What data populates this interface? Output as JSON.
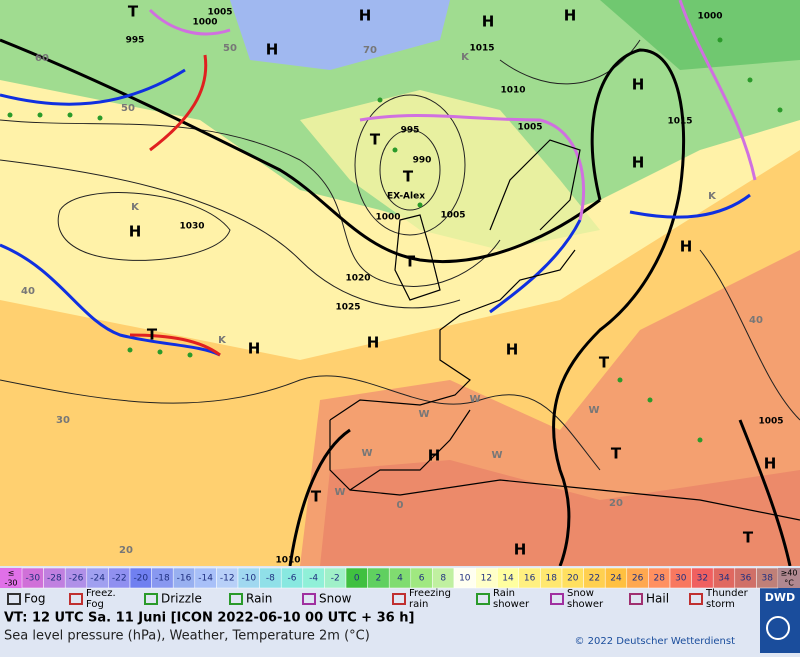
{
  "map": {
    "labels": [
      "T",
      "995",
      "1000",
      "1005",
      "H",
      "H",
      "H",
      "H",
      "1015",
      "1010",
      "995",
      "T",
      "990",
      "T",
      "EX-Alex",
      "1000",
      "1005",
      "1005",
      "H",
      "1015",
      "H",
      "1000",
      "H",
      "1030",
      "K",
      "H",
      "K",
      "T",
      "1020",
      "1025",
      "H",
      "T",
      "K",
      "H",
      "H",
      "T",
      "40",
      "40",
      "30",
      "H",
      "W",
      "W",
      "W",
      "W",
      "T",
      "H",
      "1005",
      "T",
      "W",
      "0",
      "20",
      "H",
      "T",
      "20",
      "1010",
      "60",
      "50",
      "50",
      "70",
      "K",
      "W"
    ]
  },
  "color_scale": {
    "low_symbol": "≤",
    "low_value": "-30",
    "high_value": "≥40",
    "high_unit": "°C",
    "values": [
      -30,
      -28,
      -26,
      -24,
      -22,
      -20,
      -18,
      -16,
      -14,
      -12,
      -10,
      -8,
      -6,
      -4,
      -2,
      0,
      2,
      4,
      6,
      8,
      10,
      12,
      14,
      16,
      18,
      20,
      22,
      24,
      26,
      28,
      30,
      32,
      34,
      36,
      38
    ],
    "colors": [
      "#d070d8",
      "#c080e0",
      "#b090e8",
      "#a0a0f0",
      "#9090f0",
      "#7080f0",
      "#8898f0",
      "#98b0f0",
      "#a8c0f8",
      "#b8d0f8",
      "#a0d8f0",
      "#90e0e8",
      "#88e8e0",
      "#90f0d8",
      "#a0f0c8",
      "#40c040",
      "#60d060",
      "#80dc70",
      "#a0e880",
      "#c0f0a0",
      "#fffff0",
      "#ffffc8",
      "#ffffa0",
      "#fff080",
      "#ffe870",
      "#ffe060",
      "#ffd050",
      "#ffc040",
      "#ffa850",
      "#ff9060",
      "#f87860",
      "#f06060",
      "#e06860",
      "#d07068",
      "#c08078"
    ]
  },
  "legend": [
    {
      "label": [
        "Fog"
      ]
    },
    {
      "label": [
        "Freez.",
        "Fog"
      ]
    },
    {
      "label": [
        "Drizzle"
      ]
    },
    {
      "label": [
        "Rain"
      ]
    },
    {
      "label": [
        "Snow"
      ]
    },
    {
      "label": [
        "Freezing",
        "rain"
      ]
    },
    {
      "label": [
        "Rain",
        "shower"
      ]
    },
    {
      "label": [
        "Snow",
        "shower"
      ]
    },
    {
      "label": [
        "Hail"
      ]
    },
    {
      "label": [
        "Thunder",
        "storm"
      ]
    }
  ],
  "footer": {
    "valid_time": "VT: 12 UTC Sa.  11 Juni [ICON 2022-06-10  00 UTC + 36 h]",
    "description": "Sea level pressure (hPa), Weather, Temperature 2m (°C)",
    "copyright": "© 2022 Deutscher Wetterdienst",
    "logo": "DWD"
  }
}
